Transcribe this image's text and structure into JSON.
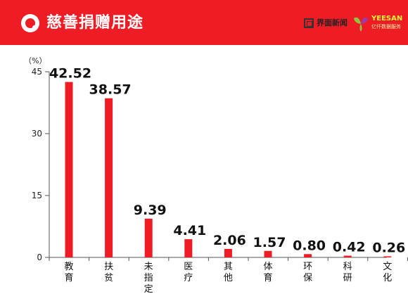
{
  "header": {
    "title": "慈善捐赠用途",
    "brand_text": "界面新闻",
    "partner_name": "YEESAN",
    "partner_sub": "亿仟数据服务"
  },
  "colors": {
    "header_bg": "#ee1c25",
    "bar": "#ee1c25",
    "partner_green": "#8dc63f",
    "partner_purple": "#9b3aa8"
  },
  "chart_data": {
    "type": "bar",
    "categories": [
      "教育",
      "扶贫",
      "未指定",
      "医疗",
      "其他",
      "体育",
      "环保",
      "科研",
      "文化"
    ],
    "values": [
      42.52,
      38.57,
      9.39,
      4.41,
      2.06,
      1.57,
      0.8,
      0.42,
      0.26
    ],
    "value_labels": [
      "42.52",
      "38.57",
      "9.39",
      "4.41",
      "2.06",
      "1.57",
      "0.80",
      "0.42",
      "0.26"
    ],
    "yunit": "（%）",
    "ylim": [
      0,
      45
    ],
    "yticks": [
      0,
      15,
      30,
      45
    ],
    "ytick_labels": [
      "0",
      "15",
      "30",
      "45"
    ],
    "title": "",
    "xlabel": "",
    "ylabel": "",
    "grid": false,
    "legend": "none"
  }
}
